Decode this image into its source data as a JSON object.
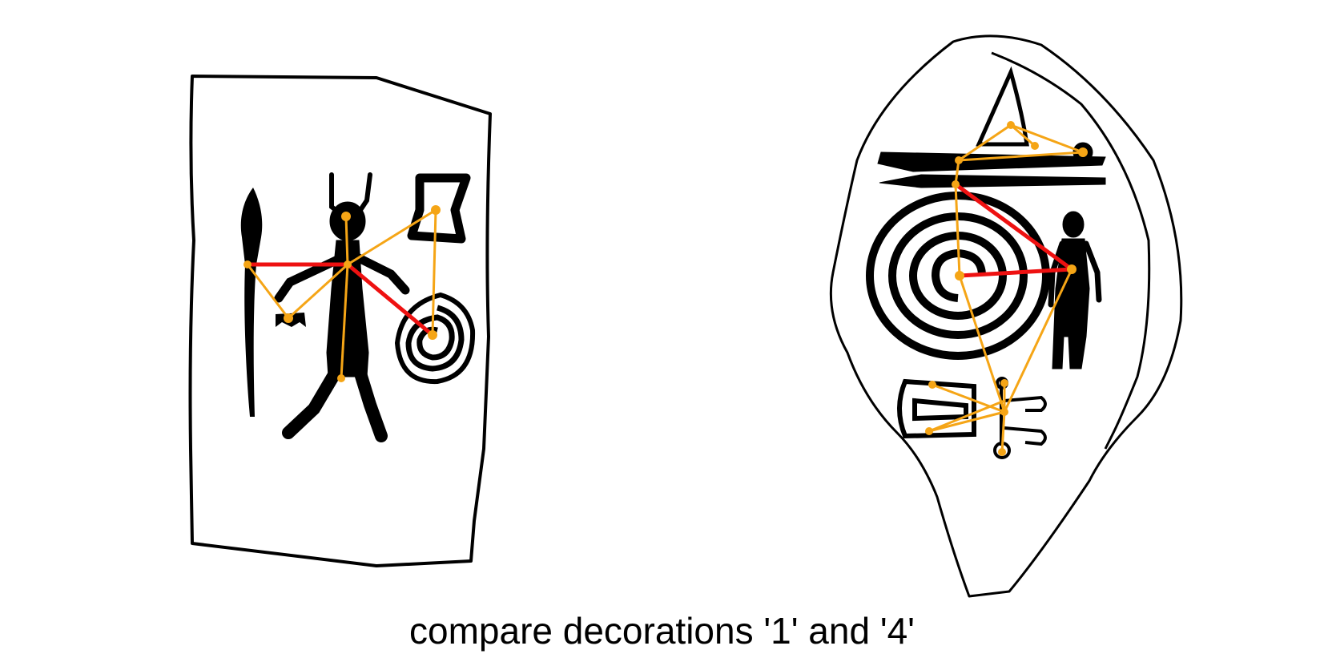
{
  "caption": "compare decorations '1' and '4'",
  "colors": {
    "ink": "#000000",
    "primary_link": "#ee1111",
    "secondary_link": "#f5a516",
    "background": "#ffffff"
  },
  "panels": [
    {
      "name": "decoration-1",
      "outline": "rectangular stone slab",
      "motifs": [
        "spear",
        "horned-figure",
        "square-frame",
        "spiral-shield",
        "small-object"
      ],
      "primary_links": 2,
      "secondary_links": 8
    },
    {
      "name": "decoration-4",
      "outline": "irregular stone",
      "motifs": [
        "boat",
        "concentric-spiral",
        "standing-figure",
        "shield-like-object",
        "lyre-like-object"
      ],
      "primary_links": 2,
      "secondary_links": 13
    }
  ]
}
